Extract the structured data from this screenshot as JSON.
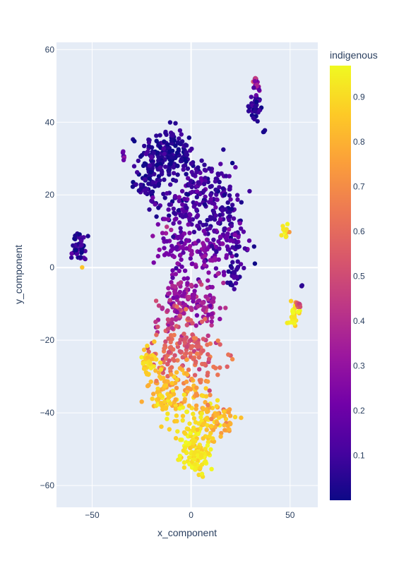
{
  "chart_data": {
    "type": "scatter",
    "xlabel": "x_component",
    "ylabel": "y_component",
    "xlim": [
      -68,
      64
    ],
    "ylim": [
      -66,
      62
    ],
    "x_ticks": [
      -50,
      0,
      50
    ],
    "y_ticks": [
      -60,
      -40,
      -20,
      0,
      20,
      40,
      60
    ],
    "grid": true,
    "colorbar": {
      "title": "indigenous",
      "range": [
        0.0,
        0.97
      ],
      "ticks": [
        0.1,
        0.2,
        0.3,
        0.4,
        0.5,
        0.6,
        0.7,
        0.8,
        0.9
      ],
      "colorscale": [
        "#0d0887",
        "#46039f",
        "#7201a8",
        "#9c179e",
        "#bd3786",
        "#d8576b",
        "#ed7953",
        "#fb9f3a",
        "#fdca26",
        "#f0f921"
      ],
      "position": "right"
    },
    "marker_color_by": "indigenous",
    "clusters": [
      {
        "center": [
          -12,
          31
        ],
        "spread": [
          9,
          5
        ],
        "n": 170,
        "value": 0.05,
        "value_sd": 0.04
      },
      {
        "center": [
          -20,
          24
        ],
        "spread": [
          6,
          5
        ],
        "n": 70,
        "value": 0.05,
        "value_sd": 0.04
      },
      {
        "center": [
          6,
          22
        ],
        "spread": [
          10,
          5
        ],
        "n": 110,
        "value": 0.1,
        "value_sd": 0.05
      },
      {
        "center": [
          16,
          16
        ],
        "spread": [
          6,
          5
        ],
        "n": 60,
        "value": 0.08,
        "value_sd": 0.05
      },
      {
        "center": [
          -5,
          15
        ],
        "spread": [
          8,
          5
        ],
        "n": 70,
        "value": 0.12,
        "value_sd": 0.05
      },
      {
        "center": [
          22,
          7
        ],
        "spread": [
          6,
          5
        ],
        "n": 50,
        "value": 0.12,
        "value_sd": 0.06
      },
      {
        "center": [
          -6,
          5
        ],
        "spread": [
          7,
          5
        ],
        "n": 70,
        "value": 0.22,
        "value_sd": 0.06
      },
      {
        "center": [
          8,
          5
        ],
        "spread": [
          8,
          5
        ],
        "n": 70,
        "value": 0.22,
        "value_sd": 0.06
      },
      {
        "center": [
          22,
          -3
        ],
        "spread": [
          3,
          3
        ],
        "n": 25,
        "value": 0.08,
        "value_sd": 0.04
      },
      {
        "center": [
          -5,
          -8
        ],
        "spread": [
          6,
          4
        ],
        "n": 60,
        "value": 0.32,
        "value_sd": 0.06
      },
      {
        "center": [
          6,
          -10
        ],
        "spread": [
          7,
          5
        ],
        "n": 65,
        "value": 0.35,
        "value_sd": 0.07
      },
      {
        "center": [
          -10,
          -14
        ],
        "spread": [
          5,
          4
        ],
        "n": 40,
        "value": 0.45,
        "value_sd": 0.06
      },
      {
        "center": [
          0,
          -20
        ],
        "spread": [
          7,
          4
        ],
        "n": 60,
        "value": 0.52,
        "value_sd": 0.06
      },
      {
        "center": [
          -12,
          -24
        ],
        "spread": [
          6,
          4
        ],
        "n": 45,
        "value": 0.58,
        "value_sd": 0.06
      },
      {
        "center": [
          5,
          -25
        ],
        "spread": [
          8,
          4
        ],
        "n": 50,
        "value": 0.6,
        "value_sd": 0.06
      },
      {
        "center": [
          -22,
          -26
        ],
        "spread": [
          3,
          3
        ],
        "n": 35,
        "value": 0.88,
        "value_sd": 0.04
      },
      {
        "center": [
          -15,
          -33
        ],
        "spread": [
          5,
          4
        ],
        "n": 45,
        "value": 0.8,
        "value_sd": 0.06
      },
      {
        "center": [
          0,
          -33
        ],
        "spread": [
          6,
          4
        ],
        "n": 40,
        "value": 0.75,
        "value_sd": 0.06
      },
      {
        "center": [
          -10,
          -38
        ],
        "spread": [
          6,
          4
        ],
        "n": 55,
        "value": 0.88,
        "value_sd": 0.05
      },
      {
        "center": [
          8,
          -40
        ],
        "spread": [
          6,
          4
        ],
        "n": 50,
        "value": 0.85,
        "value_sd": 0.06
      },
      {
        "center": [
          16,
          -42
        ],
        "spread": [
          5,
          3
        ],
        "n": 35,
        "value": 0.78,
        "value_sd": 0.06
      },
      {
        "center": [
          2,
          -48
        ],
        "spread": [
          6,
          4
        ],
        "n": 90,
        "value": 0.92,
        "value_sd": 0.04
      },
      {
        "center": [
          3,
          -54
        ],
        "spread": [
          5,
          3
        ],
        "n": 45,
        "value": 0.93,
        "value_sd": 0.03
      },
      {
        "center": [
          -56,
          6
        ],
        "spread": [
          2.2,
          2.5
        ],
        "n": 45,
        "value": 0.06,
        "value_sd": 0.06
      },
      {
        "center": [
          -34,
          31
        ],
        "spread": [
          1,
          0.8
        ],
        "n": 6,
        "value": 0.25,
        "value_sd": 0.15
      },
      {
        "center": [
          32,
          44
        ],
        "spread": [
          2.2,
          2.5
        ],
        "n": 45,
        "value": 0.06,
        "value_sd": 0.05
      },
      {
        "center": [
          33,
          51
        ],
        "spread": [
          1.5,
          1.8
        ],
        "n": 18,
        "value": 0.35,
        "value_sd": 0.12
      },
      {
        "center": [
          37,
          37.5
        ],
        "spread": [
          0.5,
          0.5
        ],
        "n": 3,
        "value": 0.05,
        "value_sd": 0.02
      },
      {
        "center": [
          47.5,
          10
        ],
        "spread": [
          1.2,
          0.9
        ],
        "n": 14,
        "value": 0.9,
        "value_sd": 0.05
      },
      {
        "center": [
          52,
          -13
        ],
        "spread": [
          1.8,
          2.5
        ],
        "n": 32,
        "value": 0.92,
        "value_sd": 0.05
      },
      {
        "center": [
          54,
          -10.5
        ],
        "spread": [
          1,
          0.8
        ],
        "n": 10,
        "value": 0.55,
        "value_sd": 0.1
      },
      {
        "center": [
          56,
          -5
        ],
        "spread": [
          0.5,
          0.5
        ],
        "n": 3,
        "value": 0.05,
        "value_sd": 0.02
      },
      {
        "center": [
          -55,
          0
        ],
        "spread": [
          0.3,
          0.3
        ],
        "n": 1,
        "value": 0.85,
        "value_sd": 0.0
      }
    ]
  }
}
